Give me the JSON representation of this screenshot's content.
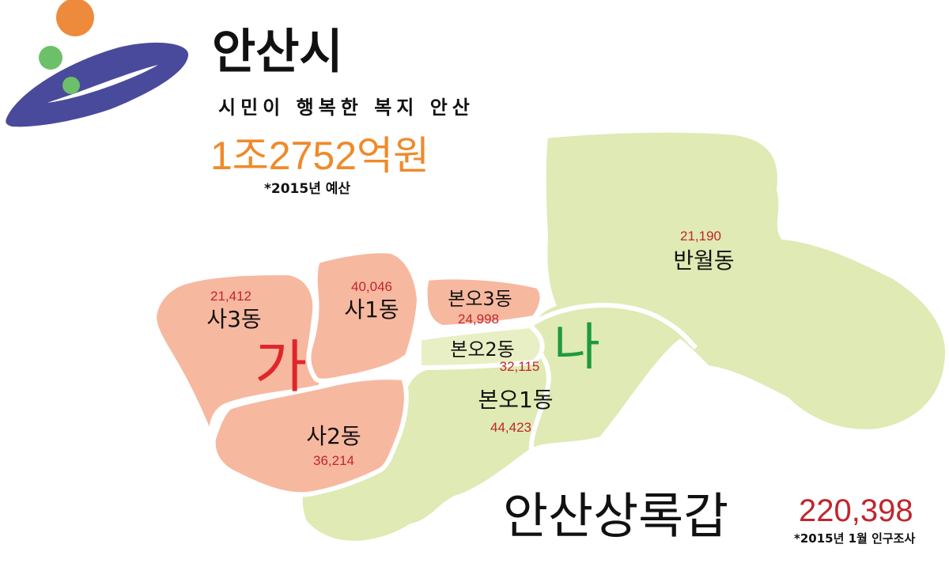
{
  "header": {
    "city_name": "안산시",
    "slogan": "시민이 행복한 복지 안산",
    "budget": "1조2752억원",
    "budget_note": "*2015년 예산"
  },
  "map": {
    "district_ga": "가",
    "district_na": "나",
    "constituency_name": "안산상록갑",
    "total_population": "220,398",
    "census_note": "*2015년 1월 인구조사",
    "colors": {
      "district_ga_fill": "#f7b8a0",
      "district_na_fill": "#dfeab4",
      "district_ga_label": "#e0262a",
      "district_na_label": "#1f9a3b",
      "population_text": "#c0262d",
      "budget_text": "#ef8a2a"
    },
    "dongs": [
      {
        "name": "사3동",
        "population": "21,412",
        "district": "가"
      },
      {
        "name": "사1동",
        "population": "40,046",
        "district": "가"
      },
      {
        "name": "사2동",
        "population": "36,214",
        "district": "가"
      },
      {
        "name": "본오3동",
        "population": "24,998",
        "district": "가"
      },
      {
        "name": "본오2동",
        "population": "32,115",
        "district": "나"
      },
      {
        "name": "본오1동",
        "population": "44,423",
        "district": "나"
      },
      {
        "name": "반월동",
        "population": "21,190",
        "district": "나"
      }
    ]
  },
  "logo": {
    "icon": "ansan-city-logo-icon",
    "colors": {
      "swoosh": "#4a4a9c",
      "orange_dot": "#ee8a3c",
      "green_dot": "#6cc06a"
    }
  }
}
